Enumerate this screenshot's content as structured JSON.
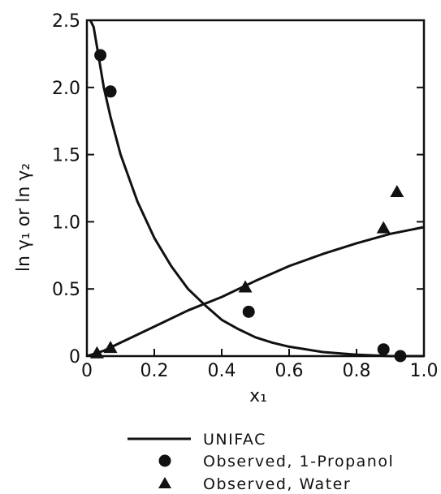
{
  "chart_data": {
    "type": "scatter",
    "xlabel": "x₁",
    "ylabel": "ln γ₁ or ln γ₂",
    "xlim": [
      0,
      1.0
    ],
    "ylim": [
      0,
      2.5
    ],
    "x_ticks": [
      "0",
      "0.2",
      "0.4",
      "0.6",
      "0.8",
      "1.0"
    ],
    "y_ticks": [
      "0",
      "0.5",
      "1.0",
      "1.5",
      "2.0",
      "2.5"
    ],
    "grid": false,
    "legend_position": "bottom-center",
    "series": [
      {
        "name": "UNIFAC",
        "kind": "line",
        "lines": [
          {
            "x": [
              0.01,
              0.02,
              0.03,
              0.05,
              0.07,
              0.1,
              0.15,
              0.2,
              0.25,
              0.3,
              0.35,
              0.4,
              0.45,
              0.5,
              0.55,
              0.6,
              0.7,
              0.8,
              0.9,
              1.0
            ],
            "y": [
              2.5,
              2.45,
              2.3,
              2.0,
              1.78,
              1.5,
              1.15,
              0.88,
              0.67,
              0.5,
              0.38,
              0.27,
              0.2,
              0.14,
              0.1,
              0.07,
              0.03,
              0.01,
              0.0,
              0.0
            ]
          },
          {
            "x": [
              0.0,
              0.05,
              0.1,
              0.2,
              0.3,
              0.4,
              0.5,
              0.6,
              0.7,
              0.8,
              0.9,
              1.0
            ],
            "y": [
              0.0,
              0.04,
              0.1,
              0.22,
              0.34,
              0.44,
              0.56,
              0.67,
              0.76,
              0.84,
              0.91,
              0.96
            ]
          }
        ]
      },
      {
        "name": "Observed, 1-Propanol",
        "kind": "scatter",
        "marker": "circle",
        "x": [
          0.04,
          0.07,
          0.48,
          0.88,
          0.93
        ],
        "y": [
          2.24,
          1.97,
          0.33,
          0.05,
          0.0
        ]
      },
      {
        "name": "Observed, Water",
        "kind": "scatter",
        "marker": "triangle",
        "x": [
          0.03,
          0.07,
          0.47,
          0.88,
          0.92
        ],
        "y": [
          0.02,
          0.06,
          0.51,
          0.95,
          1.22
        ]
      }
    ]
  }
}
